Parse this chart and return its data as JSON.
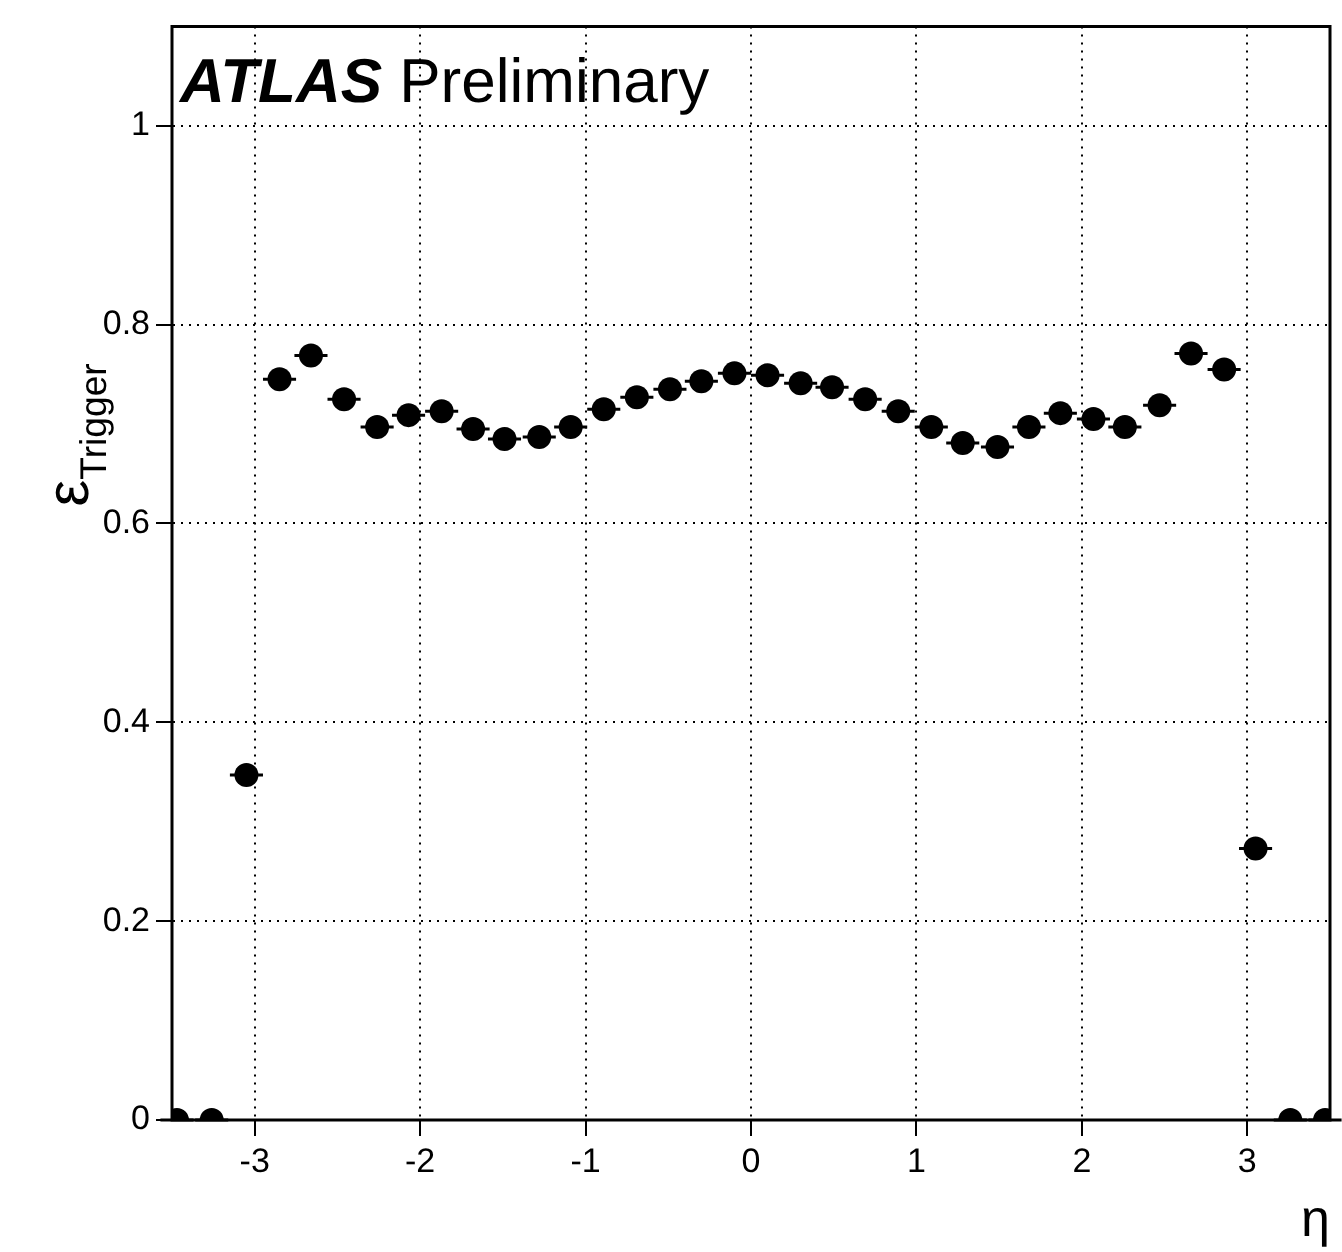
{
  "chart_data": {
    "type": "scatter",
    "title": "ATLAS Preliminary",
    "xlabel": "η",
    "ylabel": "ε$_{Trigger}$",
    "x": [
      -3.47,
      -3.26,
      -3.05,
      -2.85,
      -2.66,
      -2.46,
      -2.26,
      -2.07,
      -1.87,
      -1.68,
      -1.49,
      -1.28,
      -1.09,
      -0.89,
      -0.69,
      -0.49,
      -0.3,
      -0.1,
      0.1,
      0.3,
      0.49,
      0.69,
      0.89,
      1.09,
      1.28,
      1.49,
      1.68,
      1.87,
      2.07,
      2.26,
      2.47,
      2.66,
      2.86,
      3.05,
      3.26,
      3.47
    ],
    "series": [
      {
        "color": "#000000",
        "values": [
          0,
          0,
          0.347,
          0.745,
          0.769,
          0.725,
          0.697,
          0.709,
          0.713,
          0.695,
          0.685,
          0.687,
          0.697,
          0.715,
          0.727,
          0.735,
          0.743,
          0.751,
          0.749,
          0.741,
          0.737,
          0.725,
          0.713,
          0.697,
          0.681,
          0.677,
          0.697,
          0.711,
          0.705,
          0.697,
          0.719,
          0.771,
          0.755,
          0.273,
          0,
          0
        ],
        "xerrors": [
          0.1,
          0.1,
          0.1,
          0.1,
          0.1,
          0.1,
          0.1,
          0.1,
          0.1,
          0.1,
          0.1,
          0.1,
          0.1,
          0.1,
          0.1,
          0.1,
          0.1,
          0.1,
          0.1,
          0.1,
          0.1,
          0.1,
          0.1,
          0.1,
          0.1,
          0.1,
          0.1,
          0.1,
          0.1,
          0.1,
          0.1,
          0.1,
          0.1,
          0.1,
          0.1,
          0.1
        ]
      }
    ],
    "xlim": [
      -3.5,
      3.5
    ],
    "ylim": [
      0,
      1.1
    ],
    "xticks": [
      -3,
      -2,
      -1,
      0,
      1,
      2,
      3
    ],
    "yticks": [
      0,
      0.2,
      0.4,
      0.6,
      0.8,
      1
    ],
    "grid": true,
    "legend": false,
    "marker": "circle"
  }
}
